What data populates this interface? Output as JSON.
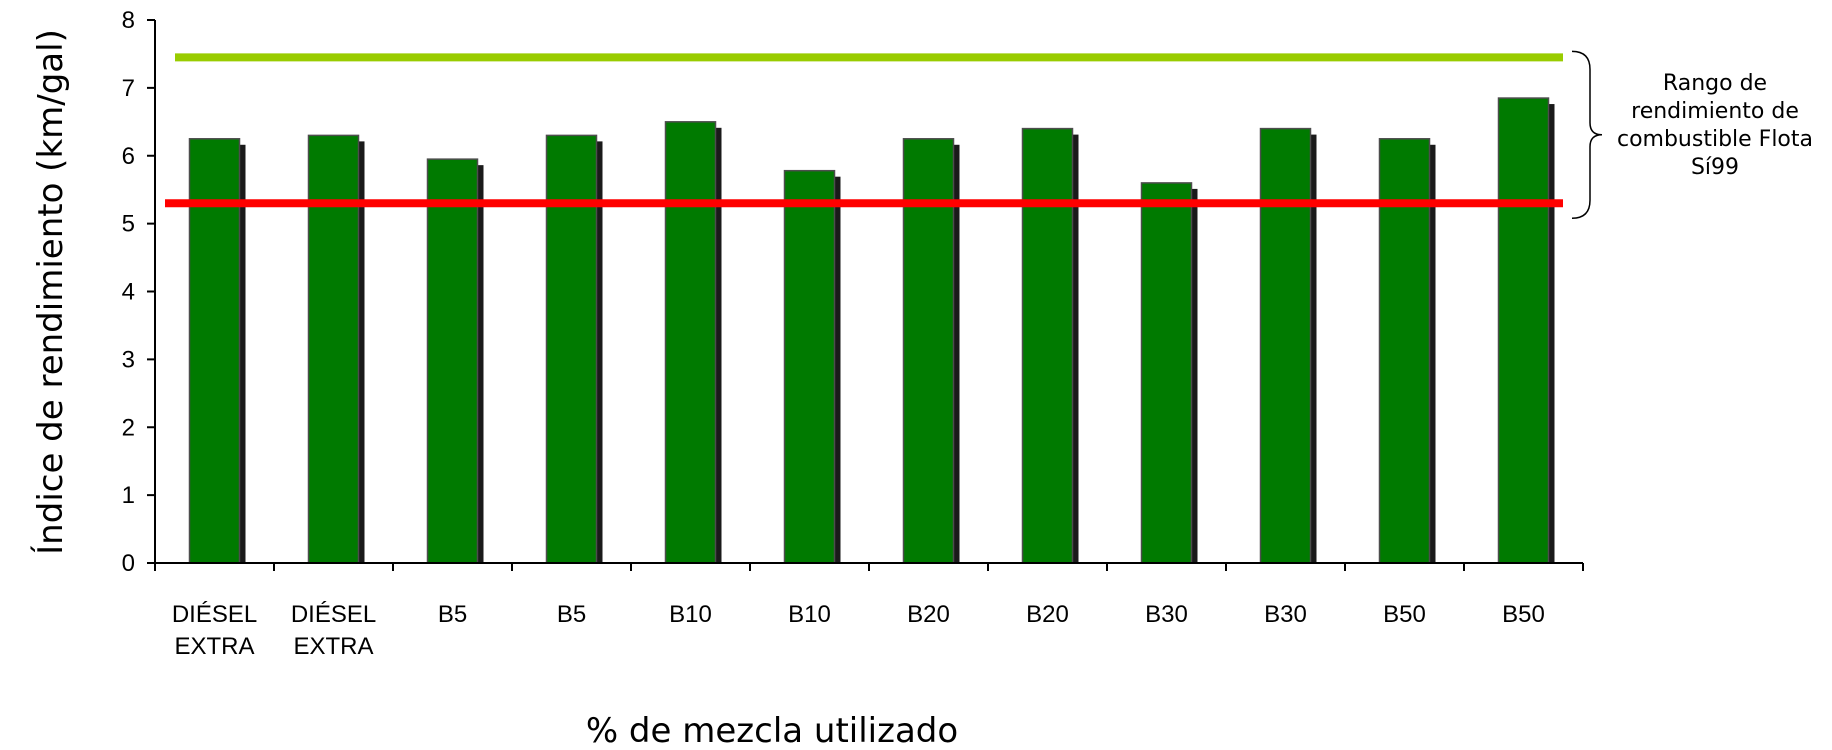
{
  "chart_data": {
    "type": "bar",
    "categories": [
      [
        "DIÉSEL",
        "EXTRA"
      ],
      [
        "DIÉSEL",
        "EXTRA"
      ],
      [
        "B5"
      ],
      [
        "B5"
      ],
      [
        "B10"
      ],
      [
        "B10"
      ],
      [
        "B20"
      ],
      [
        "B20"
      ],
      [
        "B30"
      ],
      [
        "B30"
      ],
      [
        "B50"
      ],
      [
        "B50"
      ]
    ],
    "values": [
      6.25,
      6.3,
      5.95,
      6.3,
      6.5,
      5.78,
      6.25,
      6.4,
      5.6,
      6.4,
      6.25,
      6.85
    ],
    "bar_color": "#007a00",
    "xlabel": "% de mezcla utilizado",
    "ylabel": "Índice de rendimiento (km/gal)",
    "ylim": [
      0,
      8
    ],
    "yticks": [
      "0",
      "1",
      "2",
      "3",
      "4",
      "5",
      "6",
      "7",
      "8"
    ],
    "grid": false,
    "reference_lines": [
      {
        "value": 7.45,
        "color": "#99cc00"
      },
      {
        "value": 5.3,
        "color": "#ff0000"
      }
    ],
    "annotation": {
      "lines": [
        "Rango de",
        "rendimiento de",
        "combustible Flota",
        "Sí99"
      ],
      "range": [
        5.3,
        7.45
      ]
    }
  }
}
